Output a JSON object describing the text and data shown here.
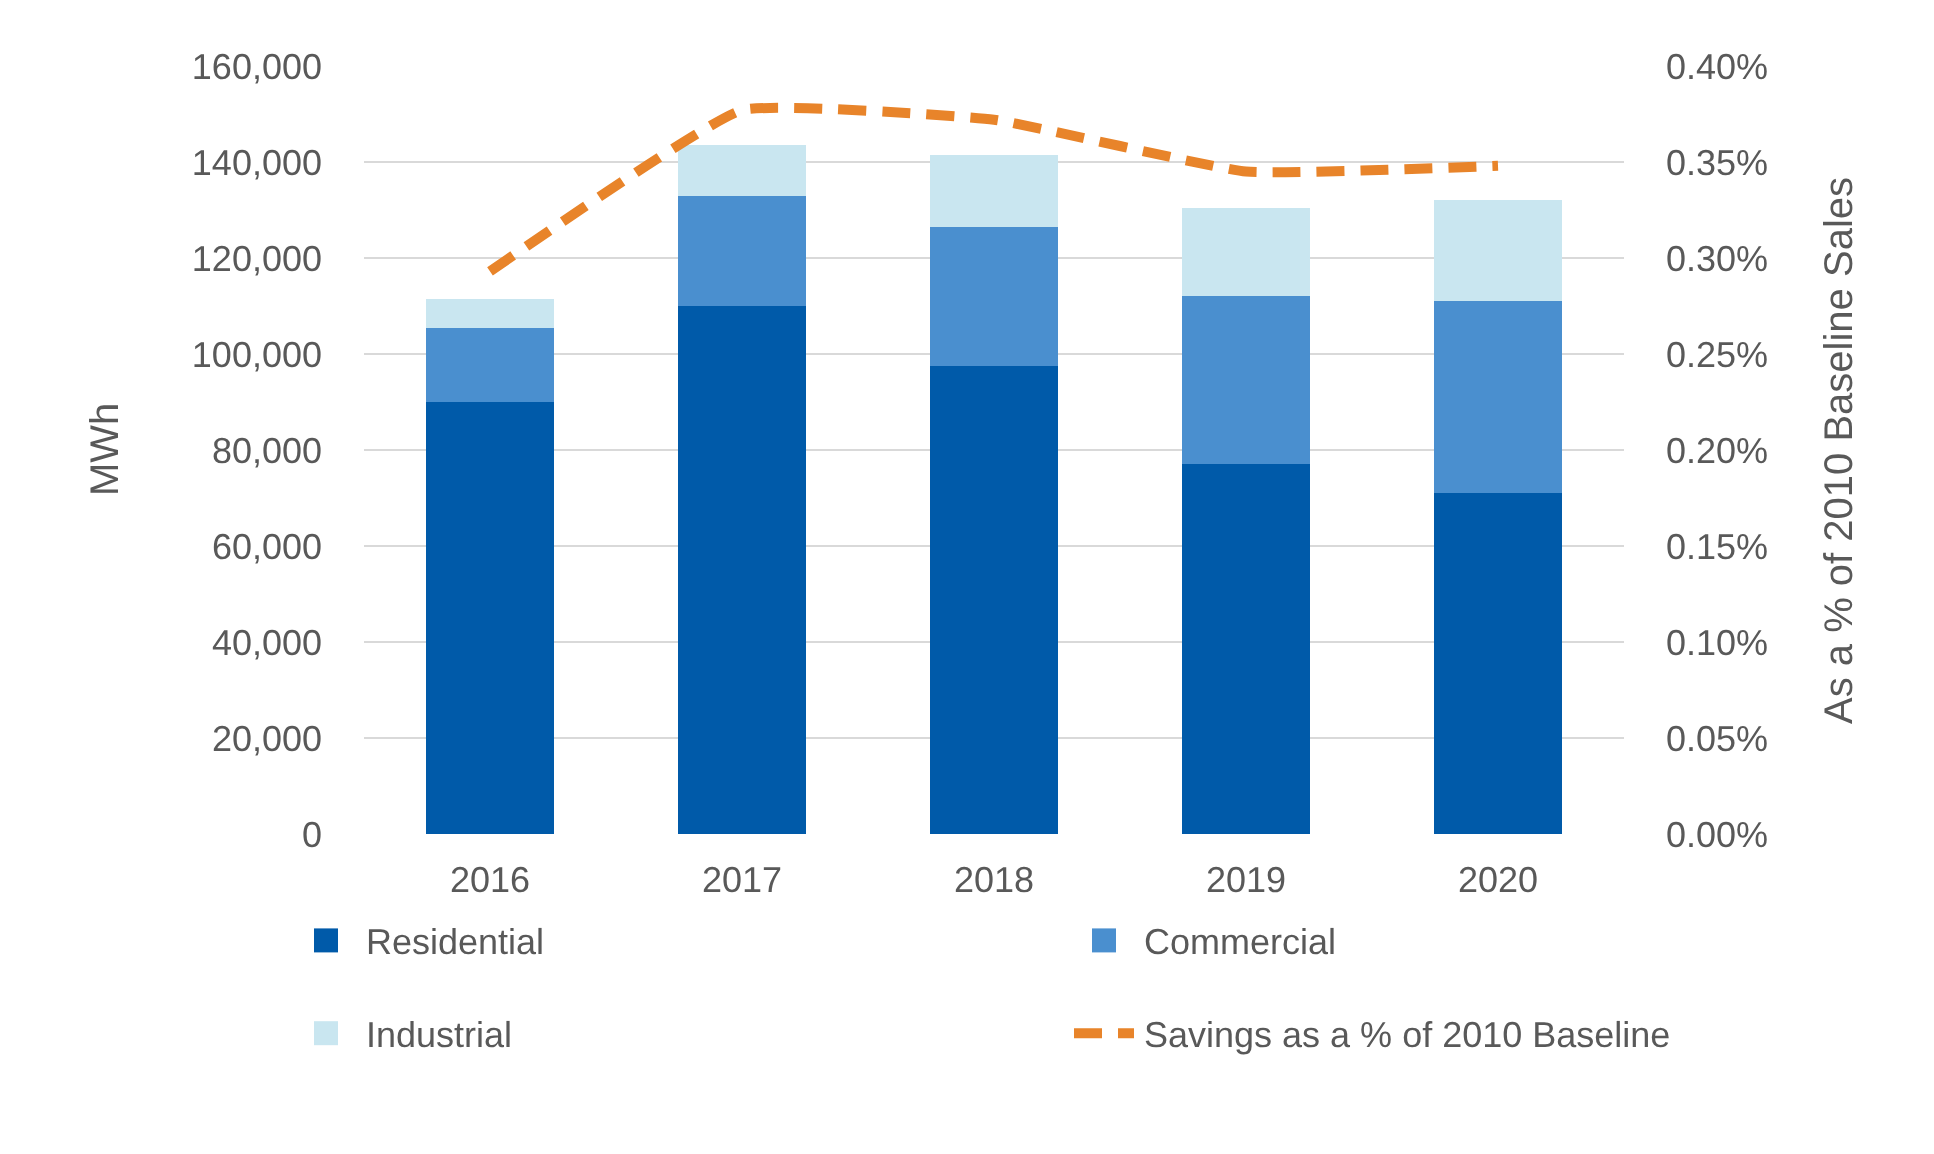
{
  "chart_data": {
    "type": "bar",
    "stacked": true,
    "categories": [
      "2016",
      "2017",
      "2018",
      "2019",
      "2020"
    ],
    "ylabel": "MWh",
    "y2label": "As a % of 2010 Baseline Sales",
    "ylim": [
      0,
      160000
    ],
    "yticks": [
      0,
      {
        "value": 20000,
        "label": "20,000"
      },
      {
        "value": 40000,
        "label": "40,000"
      },
      {
        "value": 60000,
        "label": "60,000"
      },
      {
        "value": 80000,
        "label": "80,000"
      },
      {
        "value": 100000,
        "label": "100,000"
      },
      {
        "value": 120000,
        "label": "120,000"
      },
      {
        "value": 140000,
        "label": "140,000"
      },
      {
        "value": 160000,
        "label": "160,000"
      }
    ],
    "y2lim": [
      0,
      0.4
    ],
    "y2ticks": [
      {
        "value": 0,
        "label": "0.00%"
      },
      {
        "value": 0.05,
        "label": "0.05%"
      },
      {
        "value": 0.1,
        "label": "0.10%"
      },
      {
        "value": 0.15,
        "label": "0.15%"
      },
      {
        "value": 0.2,
        "label": "0.20%"
      },
      {
        "value": 0.25,
        "label": "0.25%"
      },
      {
        "value": 0.3,
        "label": "0.30%"
      },
      {
        "value": 0.35,
        "label": "0.35%"
      },
      {
        "value": 0.4,
        "label": "0.40%"
      }
    ],
    "grid": "y",
    "legend": "bottom",
    "series": [
      {
        "name": "Residential",
        "color": "#005aa9",
        "values": [
          90000,
          110000,
          97500,
          77000,
          71000
        ]
      },
      {
        "name": "Commercial",
        "color": "#4a8fcf",
        "values": [
          15500,
          23000,
          29000,
          35000,
          40000
        ]
      },
      {
        "name": "Industrial",
        "color": "#c9e6f0",
        "values": [
          6000,
          10500,
          15000,
          18500,
          21000
        ]
      },
      {
        "name": "Savings as a % of 2010 Baseline",
        "type": "line",
        "axis": "y2",
        "color": "#e8842a",
        "line_style": "dashed",
        "marker": "none",
        "values": [
          0.293,
          0.377,
          0.372,
          0.345,
          0.348
        ]
      }
    ]
  }
}
